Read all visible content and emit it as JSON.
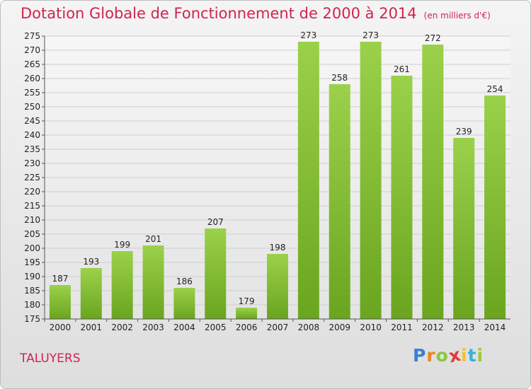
{
  "header": {
    "title": "Dotation Globale de Fonctionnement de 2000 à 2014",
    "unit": "(en milliers d'€)"
  },
  "footer": {
    "commune": "TALUYERS",
    "logo": {
      "letters": [
        "P",
        "r",
        "o",
        "x",
        "i",
        "t",
        "i"
      ],
      "colors": [
        "#3b7fd0",
        "#e8862a",
        "#8cc63f",
        "#e23a3a",
        "#f2c230",
        "#3bb0d8",
        "#9bc93a"
      ]
    }
  },
  "colors": {
    "bar_top": "#9bd14a",
    "bar_bottom": "#6aa51f",
    "grid": "#cfcfcf",
    "axis": "#555555",
    "accent": "#d1234f"
  },
  "chart_data": {
    "type": "bar",
    "categories": [
      "2000",
      "2001",
      "2002",
      "2003",
      "2004",
      "2005",
      "2006",
      "2007",
      "2008",
      "2009",
      "2010",
      "2011",
      "2012",
      "2013",
      "2014"
    ],
    "values": [
      187,
      193,
      199,
      201,
      186,
      207,
      179,
      198,
      273,
      258,
      273,
      261,
      272,
      239,
      254
    ],
    "title": "Dotation Globale de Fonctionnement de 2000 à 2014",
    "subtitle": "(en milliers d'€)",
    "xlabel": "",
    "ylabel": "",
    "ylim": [
      175,
      275
    ],
    "yticks": [
      175,
      180,
      185,
      190,
      195,
      200,
      205,
      210,
      215,
      220,
      225,
      230,
      235,
      240,
      245,
      250,
      255,
      260,
      265,
      270,
      275
    ],
    "grid": true,
    "legend": "none"
  }
}
